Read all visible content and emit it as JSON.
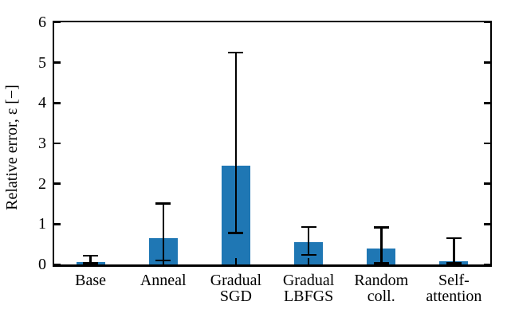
{
  "chart_data": {
    "type": "bar",
    "title": "",
    "xlabel": "",
    "ylabel": "Relative error, ε [−]",
    "ylim": [
      0,
      6
    ],
    "yticks": [
      0,
      1,
      2,
      3,
      4,
      5,
      6
    ],
    "grid": false,
    "legend": null,
    "bar_color": "#1f77b4",
    "error_color": "#000000",
    "tick_direction": "in",
    "categories": [
      "Base",
      "Anneal",
      "Gradual\nSGD",
      "Gradual\nLBFGS",
      "Random\ncoll.",
      "Self-\nattention"
    ],
    "values": [
      0.05,
      0.65,
      2.45,
      0.55,
      0.4,
      0.08
    ],
    "error_low": [
      0.03,
      0.1,
      0.78,
      0.24,
      0.03,
      0.03
    ],
    "error_high": [
      0.22,
      1.51,
      5.25,
      0.93,
      0.92,
      0.65
    ]
  }
}
